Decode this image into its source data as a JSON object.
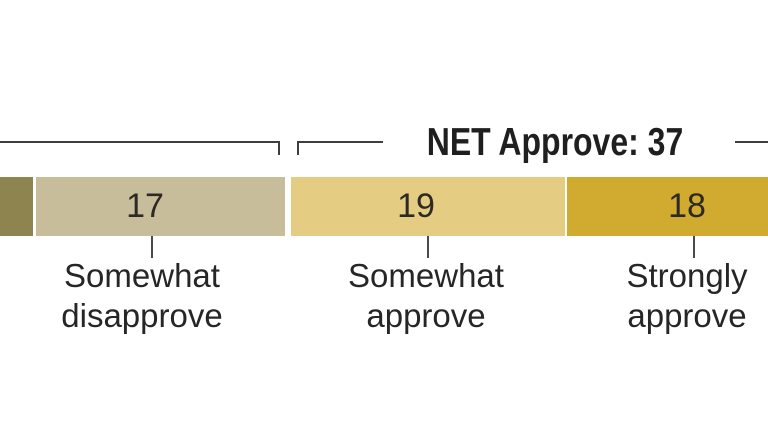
{
  "chart_data": {
    "type": "bar",
    "subtype": "horizontal-stacked-single-bar",
    "annotation": "NET Approve: 37",
    "segments": [
      {
        "label": "",
        "value": null,
        "color": "#8e8450",
        "truncated_at_left_edge": true
      },
      {
        "label": "Somewhat disapprove",
        "value": 17,
        "color": "#c7bd9b"
      },
      {
        "label": "Somewhat approve",
        "value": 19,
        "color": "#e4cc82"
      },
      {
        "label": "Strongly approve",
        "value": 18,
        "color": "#d1aa30"
      }
    ],
    "legend_position": "callouts-below-bar",
    "grid": false
  },
  "net_label": "NET Approve: 37",
  "segment_labels": [
    {
      "line1": "Somewhat",
      "line2": "disapprove"
    },
    {
      "line1": "Somewhat",
      "line2": "approve"
    },
    {
      "line1": "Strongly",
      "line2": "approve"
    }
  ],
  "colors": {
    "background": "#ffffff",
    "rule": "#3e3e3e",
    "value_text": "#2d2a24",
    "label_text": "#262626"
  }
}
